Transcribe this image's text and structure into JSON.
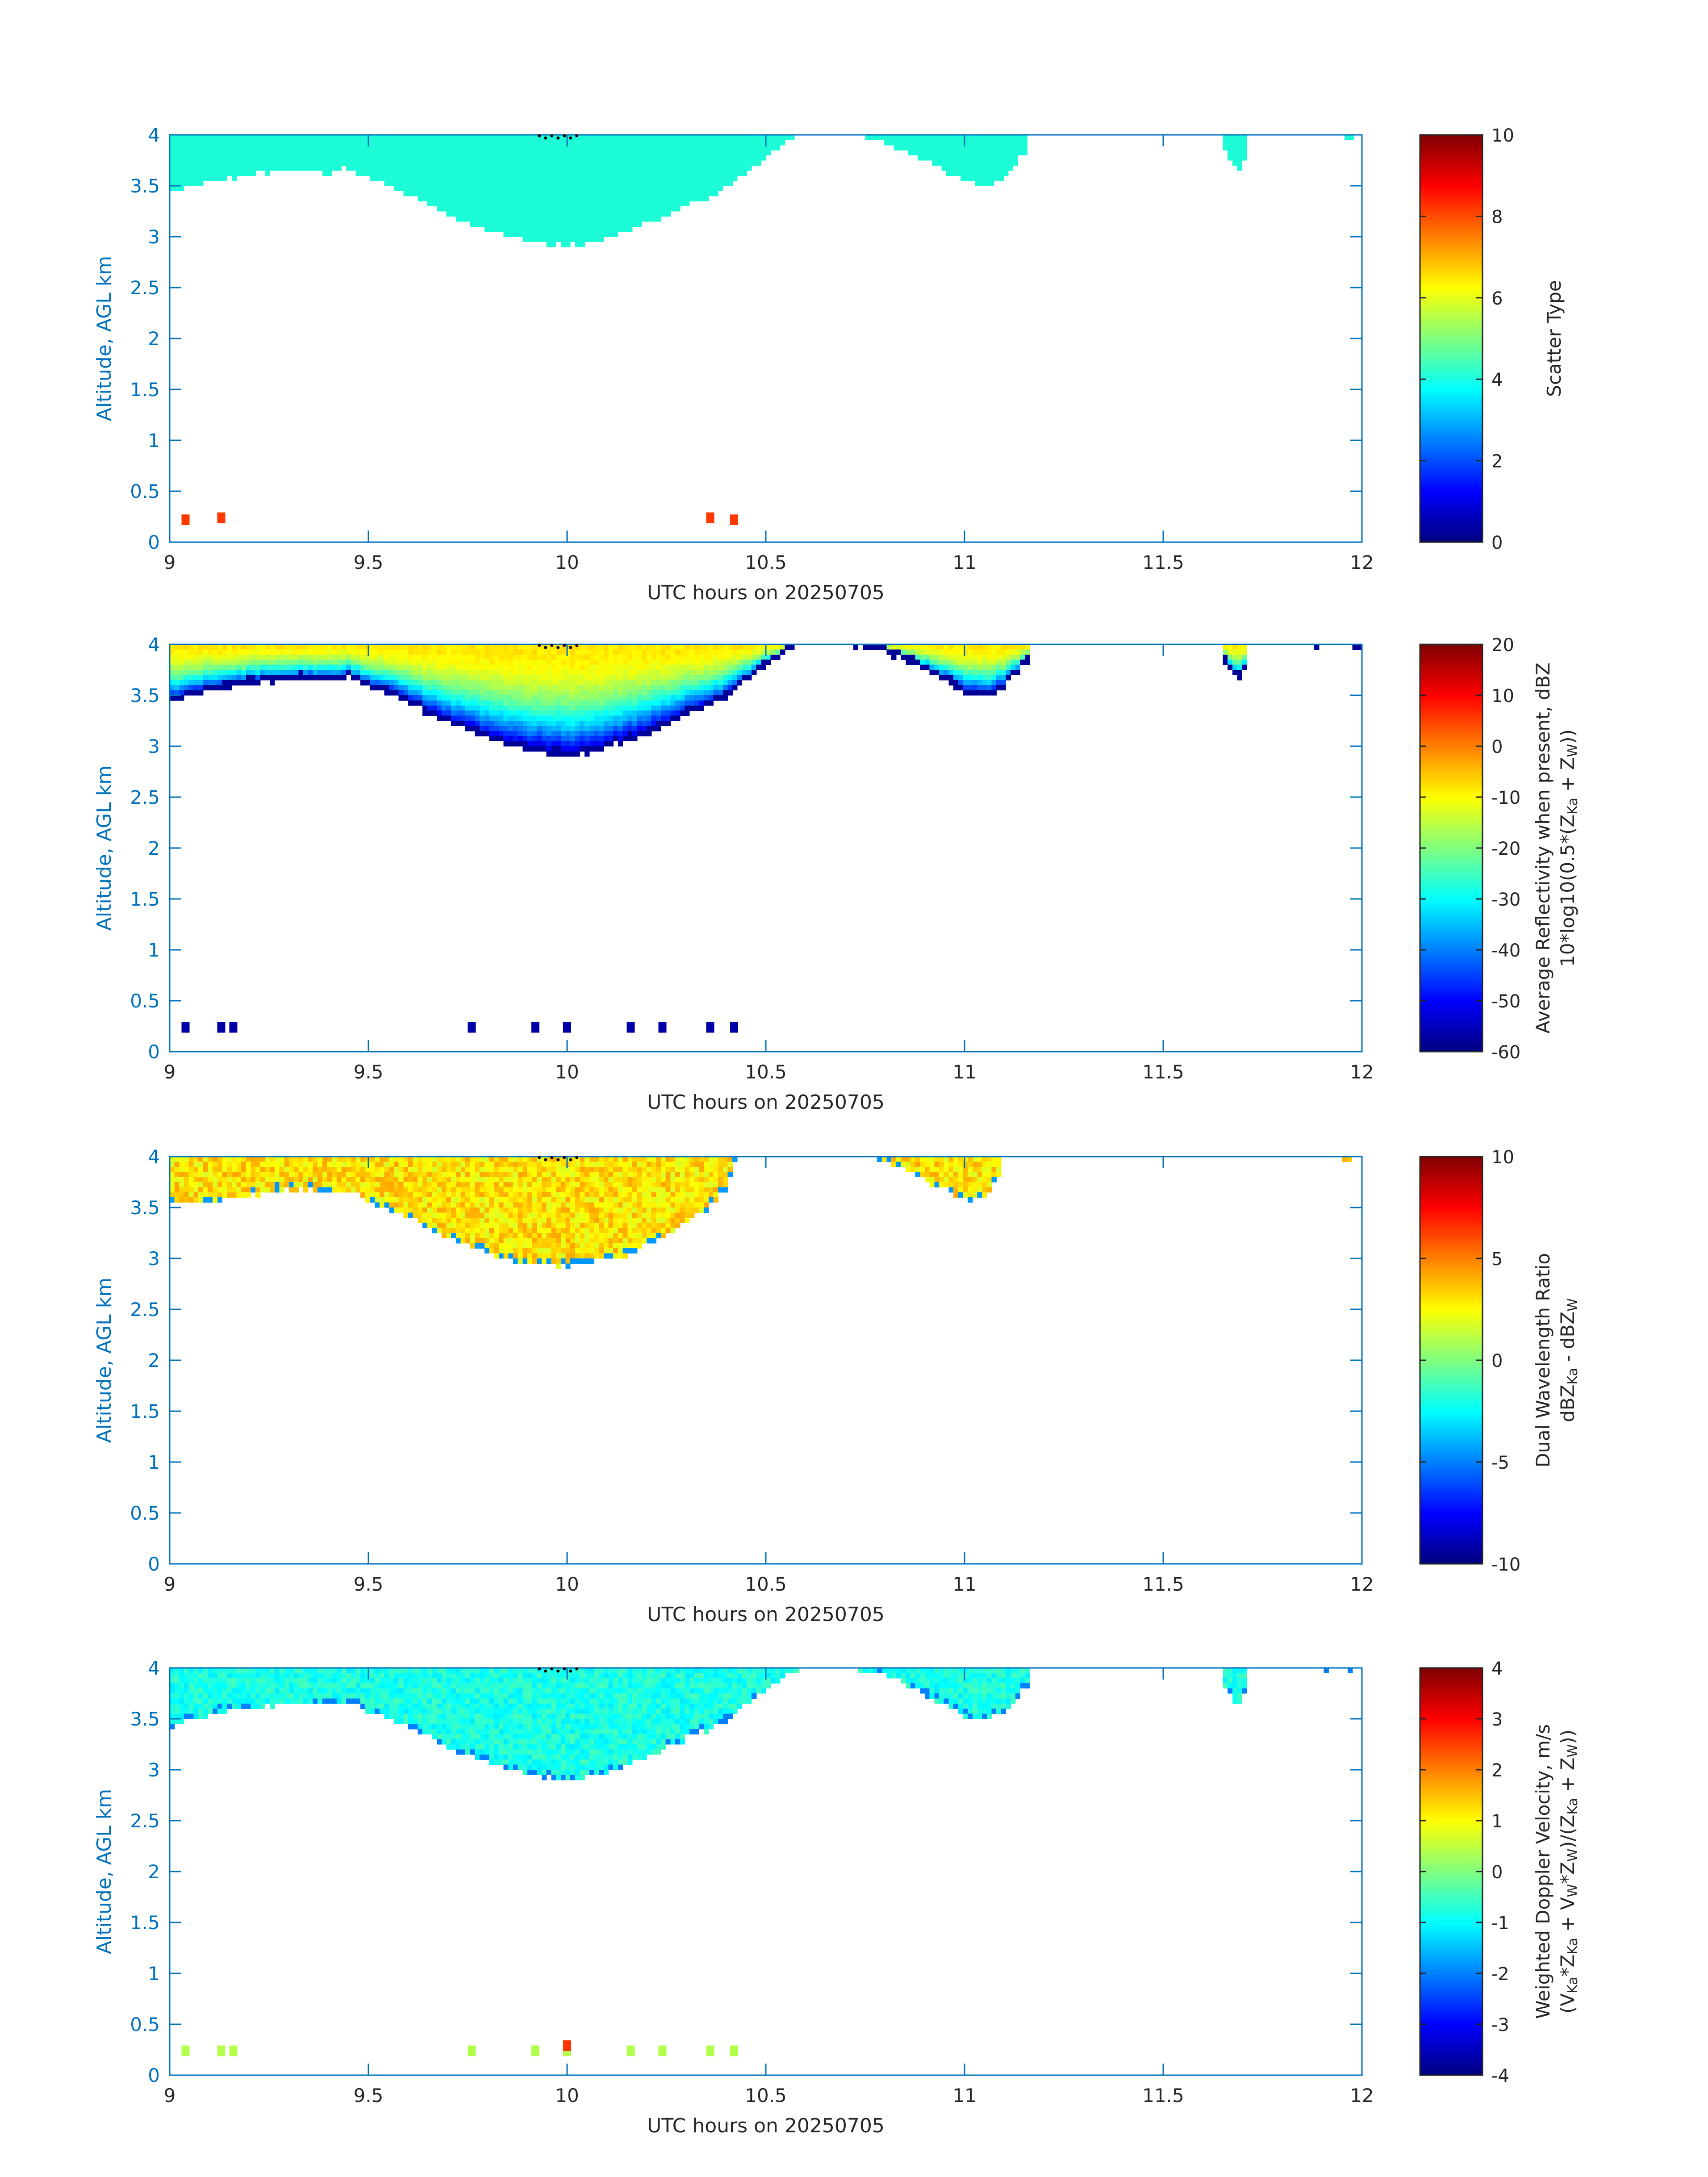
{
  "figure": {
    "panel_count": 4,
    "x_label": "UTC hours on 20250705",
    "y_label": "Altitude, AGL km",
    "axis_color": "#0072BD",
    "text_color": "#262626"
  },
  "chart_data": [
    {
      "type": "heatmap",
      "name": "scatter-type",
      "xlabel": "UTC hours on 20250705",
      "ylabel": "Altitude, AGL km",
      "xlim": [
        9,
        12
      ],
      "ylim": [
        0,
        4
      ],
      "xticks": [
        "9",
        "9.5",
        "10",
        "10.5",
        "11",
        "11.5",
        "12"
      ],
      "yticks": [
        "0",
        "0.5",
        "1",
        "1.5",
        "2",
        "2.5",
        "3",
        "3.5",
        "4"
      ],
      "colorbar": {
        "label_lines": [
          "Scatter Type"
        ],
        "range": [
          0,
          10
        ],
        "ticks": [
          "0",
          "2",
          "4",
          "6",
          "8",
          "10"
        ],
        "colormap": "jet"
      },
      "fill_mode": "solid",
      "fill_value": 3.7,
      "fill_color": "#1CFDD7",
      "cloud_regions": [
        {
          "x": [
            9.0,
            9.05,
            9.1,
            9.15,
            9.2,
            9.25,
            9.3,
            9.35,
            9.4,
            9.45,
            9.5,
            9.55,
            9.6,
            9.65,
            9.7,
            9.75,
            9.8,
            9.85,
            9.9,
            9.95,
            10.0,
            10.05,
            10.1,
            10.15,
            10.2,
            10.25,
            10.3,
            10.35,
            10.4,
            10.45,
            10.5,
            10.55,
            10.6
          ],
          "base_km": [
            3.4,
            3.45,
            3.52,
            3.55,
            3.58,
            3.6,
            3.62,
            3.63,
            3.6,
            3.65,
            3.55,
            3.48,
            3.4,
            3.3,
            3.2,
            3.12,
            3.05,
            2.98,
            2.93,
            2.9,
            2.88,
            2.9,
            2.95,
            3.02,
            3.1,
            3.18,
            3.28,
            3.35,
            3.45,
            3.6,
            3.75,
            3.9,
            4.0
          ]
        },
        {
          "x": [
            10.75,
            10.8,
            10.85,
            10.9,
            10.95,
            11.0,
            11.05,
            11.1,
            11.15
          ],
          "base_km": [
            3.95,
            3.9,
            3.82,
            3.72,
            3.62,
            3.53,
            3.48,
            3.55,
            3.8
          ]
        },
        {
          "x": [
            11.65,
            11.67,
            11.69,
            11.7
          ],
          "base_km": [
            3.9,
            3.7,
            3.62,
            3.75
          ]
        },
        {
          "x": [
            11.92,
            11.96,
            11.99
          ],
          "base_km": [
            3.96,
            3.96,
            3.96
          ]
        }
      ],
      "isolated_points": [
        {
          "x": 9.04,
          "z": 0.22,
          "value": 8.2
        },
        {
          "x": 9.13,
          "z": 0.24,
          "value": 8.2
        },
        {
          "x": 10.36,
          "z": 0.24,
          "value": 8.2
        },
        {
          "x": 10.42,
          "z": 0.22,
          "value": 8.2
        }
      ]
    },
    {
      "type": "heatmap",
      "name": "average-reflectivity",
      "xlabel": "UTC hours on 20250705",
      "ylabel": "Altitude, AGL km",
      "xlim": [
        9,
        12
      ],
      "ylim": [
        0,
        4
      ],
      "xticks": [
        "9",
        "9.5",
        "10",
        "10.5",
        "11",
        "11.5",
        "12"
      ],
      "yticks": [
        "0",
        "0.5",
        "1",
        "1.5",
        "2",
        "2.5",
        "3",
        "3.5",
        "4"
      ],
      "colorbar": {
        "label_lines": [
          "Average Reflectivity when present, dBZ",
          "10*log10(0.5*(Z"
        ],
        "label_line2_parts": [
          {
            "text": "10*log10(0.5*(Z",
            "sub": false
          },
          {
            "text": "Ka",
            "sub": true
          },
          {
            "text": " + Z",
            "sub": false
          },
          {
            "text": "W",
            "sub": true
          },
          {
            "text": "))",
            "sub": false
          }
        ],
        "range": [
          -60,
          20
        ],
        "ticks": [
          "-60",
          "-50",
          "-40",
          "-30",
          "-20",
          "-10",
          "0",
          "10",
          "20"
        ],
        "colormap": "jet"
      },
      "fill_mode": "gradient",
      "top_value": -8,
      "base_value": -58,
      "cloud_regions": [
        {
          "x": [
            9.0,
            9.05,
            9.1,
            9.15,
            9.2,
            9.25,
            9.3,
            9.35,
            9.4,
            9.45,
            9.5,
            9.55,
            9.6,
            9.65,
            9.7,
            9.75,
            9.8,
            9.85,
            9.9,
            9.95,
            10.0,
            10.05,
            10.1,
            10.15,
            10.2,
            10.25,
            10.3,
            10.35,
            10.4,
            10.45,
            10.5,
            10.55,
            10.6
          ],
          "base_km": [
            3.4,
            3.45,
            3.52,
            3.55,
            3.58,
            3.6,
            3.62,
            3.63,
            3.6,
            3.65,
            3.55,
            3.48,
            3.4,
            3.3,
            3.2,
            3.12,
            3.05,
            2.98,
            2.93,
            2.9,
            2.88,
            2.9,
            2.95,
            3.02,
            3.1,
            3.18,
            3.28,
            3.35,
            3.45,
            3.6,
            3.75,
            3.9,
            4.0
          ]
        },
        {
          "x": [
            10.72,
            10.8,
            10.85,
            10.9,
            10.95,
            11.0,
            11.05,
            11.1,
            11.16
          ],
          "base_km": [
            3.95,
            3.9,
            3.82,
            3.72,
            3.62,
            3.5,
            3.45,
            3.55,
            3.8
          ]
        },
        {
          "x": [
            11.65,
            11.67,
            11.69,
            11.7
          ],
          "base_km": [
            3.85,
            3.7,
            3.6,
            3.72
          ]
        },
        {
          "x": [
            11.88,
            11.92,
            11.96,
            12.0
          ],
          "base_km": [
            3.96,
            3.96,
            3.96,
            3.96
          ]
        }
      ],
      "isolated_points": [
        {
          "x": 9.04,
          "z": 0.24,
          "value": -57
        },
        {
          "x": 9.13,
          "z": 0.24,
          "value": -57
        },
        {
          "x": 9.16,
          "z": 0.24,
          "value": -57
        },
        {
          "x": 9.76,
          "z": 0.24,
          "value": -57
        },
        {
          "x": 9.92,
          "z": 0.24,
          "value": -57
        },
        {
          "x": 10.0,
          "z": 0.24,
          "value": -57
        },
        {
          "x": 10.16,
          "z": 0.24,
          "value": -57
        },
        {
          "x": 10.24,
          "z": 0.24,
          "value": -57
        },
        {
          "x": 10.36,
          "z": 0.24,
          "value": -57
        },
        {
          "x": 10.42,
          "z": 0.24,
          "value": -57
        }
      ]
    },
    {
      "type": "heatmap",
      "name": "dual-wavelength-ratio",
      "xlabel": "UTC hours on 20250705",
      "ylabel": "Altitude, AGL km",
      "xlim": [
        9,
        12
      ],
      "ylim": [
        0,
        4
      ],
      "xticks": [
        "9",
        "9.5",
        "10",
        "10.5",
        "11",
        "11.5",
        "12"
      ],
      "yticks": [
        "0",
        "0.5",
        "1",
        "1.5",
        "2",
        "2.5",
        "3",
        "3.5",
        "4"
      ],
      "colorbar": {
        "label_lines": [
          "Dual Wavelength Ratio",
          "dBZ"
        ],
        "label_line2_parts": [
          {
            "text": "dBZ",
            "sub": false
          },
          {
            "text": "Ka",
            "sub": true
          },
          {
            "text": " - dBZ",
            "sub": false
          },
          {
            "text": "W",
            "sub": true
          }
        ],
        "range": [
          -10,
          10
        ],
        "ticks": [
          "-10",
          "-5",
          "0",
          "5",
          "10"
        ],
        "colormap": "jet"
      },
      "fill_mode": "noisy",
      "center_value": 3.0,
      "noise": 1.3,
      "edge_value": -4.5,
      "cloud_regions": [
        {
          "x": [
            9.0,
            9.05,
            9.1,
            9.15,
            9.2,
            9.25,
            9.3,
            9.35,
            9.4,
            9.45,
            9.5,
            9.55,
            9.6,
            9.65,
            9.7,
            9.75,
            9.8,
            9.85,
            9.9,
            9.95,
            10.0,
            10.05,
            10.1,
            10.15,
            10.2,
            10.25,
            10.3,
            10.35,
            10.4,
            10.43
          ],
          "base_km": [
            3.5,
            3.52,
            3.52,
            3.55,
            3.58,
            3.62,
            3.65,
            3.65,
            3.6,
            3.62,
            3.55,
            3.45,
            3.38,
            3.28,
            3.18,
            3.1,
            3.02,
            2.97,
            2.93,
            2.92,
            2.9,
            2.93,
            2.97,
            3.02,
            3.1,
            3.2,
            3.32,
            3.45,
            3.65,
            4.0
          ]
        },
        {
          "x": [
            10.78,
            10.85,
            10.9,
            10.95,
            11.0,
            11.05,
            11.09
          ],
          "base_km": [
            3.95,
            3.88,
            3.75,
            3.65,
            3.55,
            3.55,
            3.8
          ]
        },
        {
          "x": [
            11.95,
            12.0
          ],
          "base_km": [
            3.96,
            3.96
          ]
        }
      ],
      "isolated_points": []
    },
    {
      "type": "heatmap",
      "name": "weighted-doppler-velocity",
      "xlabel": "UTC hours on 20250705",
      "ylabel": "Altitude, AGL km",
      "xlim": [
        9,
        12
      ],
      "ylim": [
        0,
        4
      ],
      "xticks": [
        "9",
        "9.5",
        "10",
        "10.5",
        "11",
        "11.5",
        "12"
      ],
      "yticks": [
        "0",
        "0.5",
        "1",
        "1.5",
        "2",
        "2.5",
        "3",
        "3.5",
        "4"
      ],
      "colorbar": {
        "label_lines": [
          "Weighted Doppler Velocity, m/s",
          "(V"
        ],
        "label_line2_parts": [
          {
            "text": "(V",
            "sub": false
          },
          {
            "text": "Ka",
            "sub": true
          },
          {
            "text": "*Z",
            "sub": false
          },
          {
            "text": "Ka",
            "sub": true
          },
          {
            "text": " + V",
            "sub": false
          },
          {
            "text": "W",
            "sub": true
          },
          {
            "text": "*Z",
            "sub": false
          },
          {
            "text": "W",
            "sub": true
          },
          {
            "text": ")/(Z",
            "sub": false
          },
          {
            "text": "Ka",
            "sub": true
          },
          {
            "text": " + Z",
            "sub": false
          },
          {
            "text": "W",
            "sub": true
          },
          {
            "text": "))",
            "sub": false
          }
        ],
        "range": [
          -4,
          4
        ],
        "ticks": [
          "-4",
          "-3",
          "-2",
          "-1",
          "0",
          "1",
          "2",
          "3",
          "4"
        ],
        "colormap": "jet"
      },
      "fill_mode": "noisy",
      "center_value": -0.8,
      "noise": 0.35,
      "edge_value": -2.0,
      "cloud_regions": [
        {
          "x": [
            9.0,
            9.05,
            9.1,
            9.15,
            9.2,
            9.25,
            9.3,
            9.35,
            9.4,
            9.45,
            9.5,
            9.55,
            9.6,
            9.65,
            9.7,
            9.75,
            9.8,
            9.85,
            9.9,
            9.95,
            10.0,
            10.05,
            10.1,
            10.15,
            10.2,
            10.25,
            10.3,
            10.35,
            10.4,
            10.45,
            10.5,
            10.55,
            10.6
          ],
          "base_km": [
            3.4,
            3.45,
            3.52,
            3.55,
            3.58,
            3.6,
            3.62,
            3.63,
            3.6,
            3.65,
            3.55,
            3.48,
            3.4,
            3.3,
            3.2,
            3.12,
            3.05,
            2.98,
            2.93,
            2.9,
            2.88,
            2.9,
            2.95,
            3.02,
            3.1,
            3.18,
            3.28,
            3.35,
            3.45,
            3.6,
            3.75,
            3.9,
            4.0
          ]
        },
        {
          "x": [
            10.72,
            10.8,
            10.85,
            10.9,
            10.95,
            11.0,
            11.05,
            11.1,
            11.16
          ],
          "base_km": [
            3.95,
            3.9,
            3.82,
            3.72,
            3.62,
            3.5,
            3.45,
            3.55,
            3.8
          ]
        },
        {
          "x": [
            11.65,
            11.67,
            11.69,
            11.7
          ],
          "base_km": [
            3.85,
            3.7,
            3.6,
            3.72
          ]
        },
        {
          "x": [
            11.88,
            11.92,
            11.96,
            12.0
          ],
          "base_km": [
            3.96,
            3.96,
            3.96,
            3.96
          ]
        }
      ],
      "isolated_points": [
        {
          "x": 9.04,
          "z": 0.24,
          "value": 0.4
        },
        {
          "x": 9.13,
          "z": 0.24,
          "value": 0.4
        },
        {
          "x": 9.16,
          "z": 0.24,
          "value": 0.4
        },
        {
          "x": 9.76,
          "z": 0.24,
          "value": 0.4
        },
        {
          "x": 9.92,
          "z": 0.24,
          "value": 0.4
        },
        {
          "x": 10.0,
          "z": 0.24,
          "value": 0.4
        },
        {
          "x": 10.0,
          "z": 0.29,
          "value": 2.6
        },
        {
          "x": 10.16,
          "z": 0.24,
          "value": 0.4
        },
        {
          "x": 10.24,
          "z": 0.24,
          "value": 0.4
        },
        {
          "x": 10.36,
          "z": 0.24,
          "value": 0.4
        },
        {
          "x": 10.42,
          "z": 0.24,
          "value": 0.4
        }
      ]
    }
  ]
}
